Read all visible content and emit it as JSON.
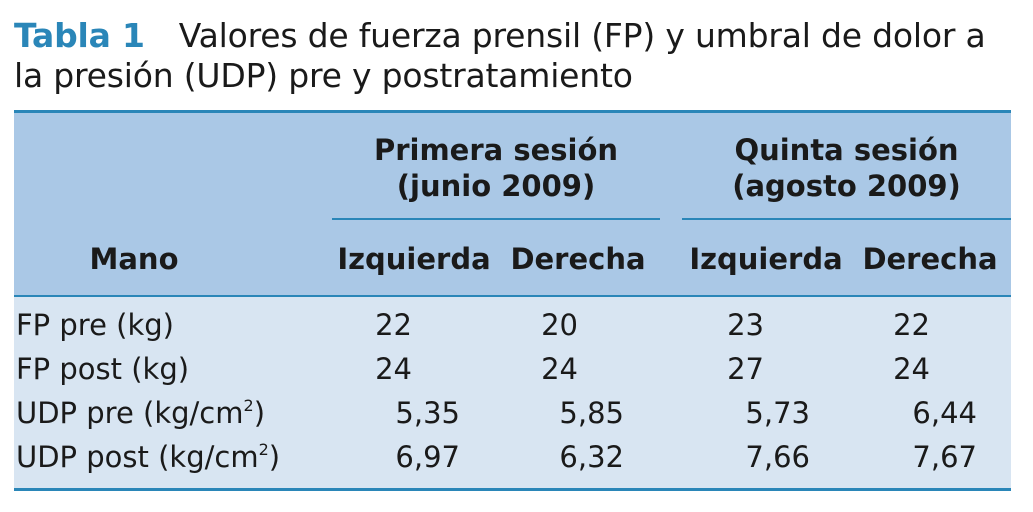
{
  "caption": {
    "label": "Tabla 1",
    "text_line1": "Valores de fuerza prensil (FP) y umbral de dolor a",
    "text_line2": "la presión (UDP) pre y postratamiento"
  },
  "table": {
    "row_header": "Mano",
    "groups": [
      {
        "line1": "Primera sesión",
        "line2": "(junio 2009)"
      },
      {
        "line1": "Quinta sesión",
        "line2": "(agosto 2009)"
      }
    ],
    "columns": [
      "Izquierda",
      "Derecha",
      "Izquierda",
      "Derecha"
    ],
    "rows": [
      {
        "label": "FP pre (kg)",
        "label_base": "FP pre (kg)",
        "label_sup": "",
        "label_end": "",
        "values": [
          "22",
          "20",
          "23",
          "22"
        ]
      },
      {
        "label": "FP post (kg)",
        "label_base": "FP post (kg)",
        "label_sup": "",
        "label_end": "",
        "values": [
          "24",
          "24",
          "27",
          "24"
        ]
      },
      {
        "label": "UDP pre (kg/cm2)",
        "label_base": "UDP pre (kg/cm",
        "label_sup": "2",
        "label_end": ")",
        "values": [
          "5,35",
          "5,85",
          "5,73",
          "6,44"
        ]
      },
      {
        "label": "UDP post (kg/cm2)",
        "label_base": "UDP post (kg/cm",
        "label_sup": "2",
        "label_end": ")",
        "values": [
          "6,97",
          "6,32",
          "7,66",
          "7,67"
        ]
      }
    ]
  }
}
